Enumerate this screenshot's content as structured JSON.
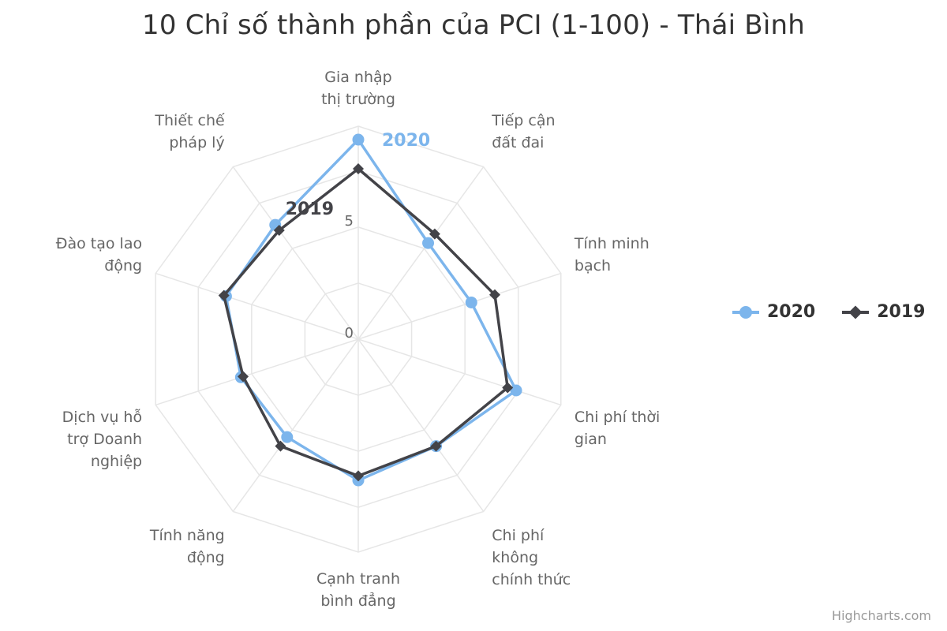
{
  "page": {
    "title": "10 Chỉ số thành phần của PCI (1-100) - Thái Bình",
    "credits": "Highcharts.com"
  },
  "colors": {
    "series_2020": "#7cb5ec",
    "series_2019": "#434348",
    "grid": "#e6e6e6",
    "text": "#666666"
  },
  "chart_data": {
    "type": "radar",
    "title": "10 Chỉ số thành phần của PCI (1-100) - Thái Bình",
    "categories": [
      [
        "Gia nhập",
        "thị trường"
      ],
      [
        "Tiếp cận",
        "đất đai"
      ],
      [
        "Tính minh",
        "bạch"
      ],
      [
        "Chi phí thời",
        "gian"
      ],
      [
        "Chi phí",
        "không",
        "chính thức"
      ],
      [
        "Cạnh tranh",
        "bình đẳng"
      ],
      [
        "Tính năng",
        "động"
      ],
      [
        "Dịch vụ hỗ",
        "trợ Doanh",
        "nghiệp"
      ],
      [
        "Đào tạo lao",
        "động"
      ],
      [
        "Thiết chế",
        "pháp lý"
      ]
    ],
    "radial_axis": {
      "min": 0,
      "max": 9.5,
      "ticks": [
        0,
        5
      ],
      "gridlines": [
        0,
        2.5,
        5,
        7.5,
        9.5
      ]
    },
    "series": [
      {
        "name": "2020",
        "marker": "circle",
        "values": [
          8.9,
          5.3,
          5.3,
          7.4,
          5.9,
          6.3,
          5.4,
          5.5,
          6.2,
          6.3
        ]
      },
      {
        "name": "2019",
        "marker": "diamond",
        "values": [
          7.6,
          5.8,
          6.4,
          7.0,
          5.9,
          6.1,
          5.9,
          5.4,
          6.3,
          6.0
        ]
      }
    ],
    "legend": "right"
  }
}
